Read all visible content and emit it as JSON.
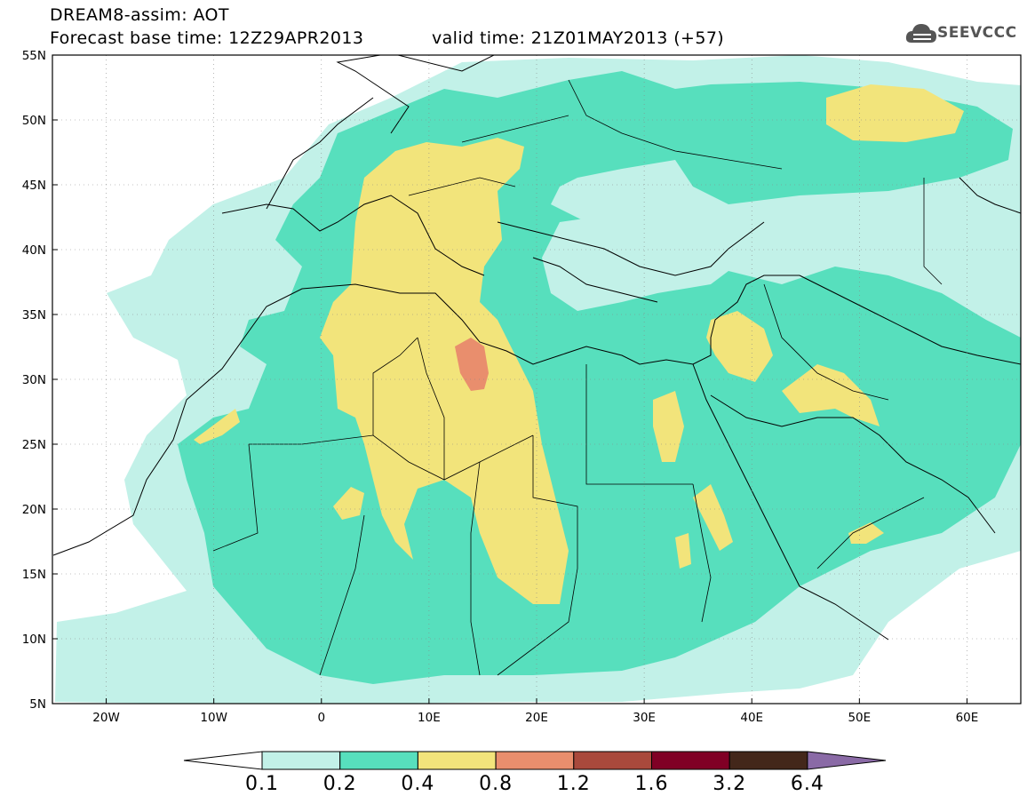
{
  "header": {
    "title": "DREAM8-assim: AOT",
    "base_time": "Forecast base time: 12Z29APR2013",
    "valid_time": "valid time: 21Z01MAY2013 (+57)"
  },
  "logo": {
    "text": "SEEVCCC",
    "icon": "cloud-icon"
  },
  "map": {
    "lat_labels": [
      "55N",
      "50N",
      "45N",
      "40N",
      "35N",
      "30N",
      "25N",
      "20N",
      "15N",
      "10N",
      "5N"
    ],
    "lon_labels": [
      "20W",
      "10W",
      "0",
      "10E",
      "20E",
      "30E",
      "40E",
      "50E",
      "60E"
    ],
    "lon_range": [
      -25,
      65
    ],
    "lat_range": [
      5,
      55
    ],
    "grid": true
  },
  "colorbar": {
    "labels": [
      "0.1",
      "0.2",
      "0.4",
      "0.8",
      "1.2",
      "1.6",
      "3.2",
      "6.4"
    ],
    "colors": [
      "#ffffff",
      "#c2f1e8",
      "#57dfbd",
      "#f2e47b",
      "#e98e6d",
      "#a9493c",
      "#800025",
      "#43271a",
      "#8a6aa6"
    ]
  },
  "palette": {
    "level_0_1": "#c2f1e8",
    "level_0_2": "#57dfbd",
    "level_0_4": "#f2e47b",
    "level_0_8": "#e98e6d"
  }
}
